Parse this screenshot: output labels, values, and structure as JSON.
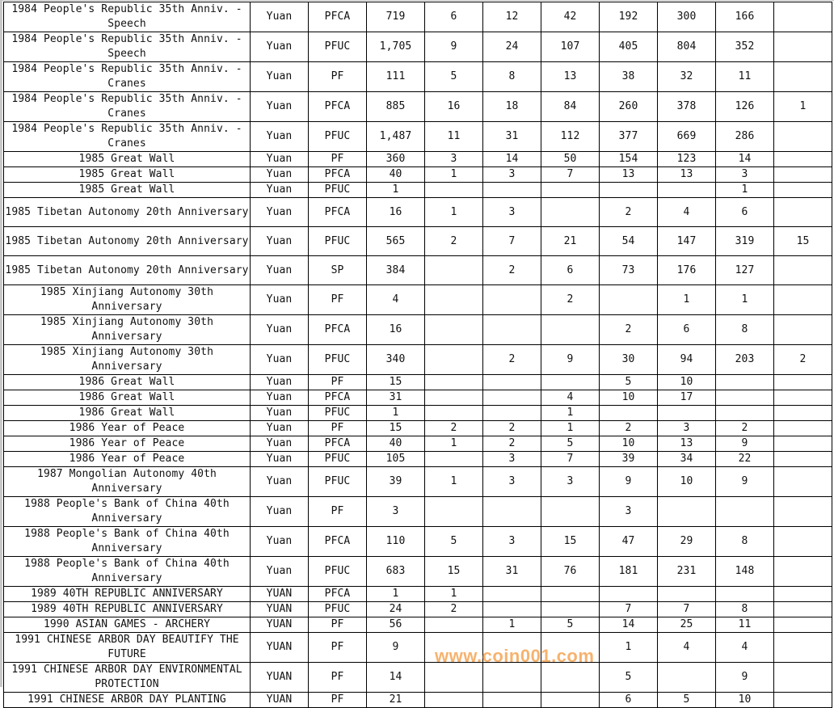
{
  "rows": [
    {
      "name": "1984 People's Republic 35th Anniv. - Speech",
      "unit": "Yuan",
      "grade": "PFCA",
      "values": [
        "719",
        "6",
        "12",
        "42",
        "192",
        "300",
        "166",
        ""
      ]
    },
    {
      "name": "1984 People's Republic 35th Anniv. - Speech",
      "unit": "Yuan",
      "grade": "PFUC",
      "values": [
        "1,705",
        "9",
        "24",
        "107",
        "405",
        "804",
        "352",
        ""
      ]
    },
    {
      "name": "1984 People's Republic 35th Anniv. - Cranes",
      "unit": "Yuan",
      "grade": "PF",
      "values": [
        "111",
        "5",
        "8",
        "13",
        "38",
        "32",
        "11",
        ""
      ]
    },
    {
      "name": "1984 People's Republic 35th Anniv. - Cranes",
      "unit": "Yuan",
      "grade": "PFCA",
      "values": [
        "885",
        "16",
        "18",
        "84",
        "260",
        "378",
        "126",
        "1"
      ]
    },
    {
      "name": "1984 People's Republic 35th Anniv. - Cranes",
      "unit": "Yuan",
      "grade": "PFUC",
      "values": [
        "1,487",
        "11",
        "31",
        "112",
        "377",
        "669",
        "286",
        ""
      ]
    },
    {
      "name": "1985 Great Wall",
      "unit": "Yuan",
      "grade": "PF",
      "values": [
        "360",
        "3",
        "14",
        "50",
        "154",
        "123",
        "14",
        ""
      ]
    },
    {
      "name": "1985 Great Wall",
      "unit": "Yuan",
      "grade": "PFCA",
      "values": [
        "40",
        "1",
        "3",
        "7",
        "13",
        "13",
        "3",
        ""
      ]
    },
    {
      "name": "1985 Great Wall",
      "unit": "Yuan",
      "grade": "PFUC",
      "values": [
        "1",
        "",
        "",
        "",
        "",
        "",
        "1",
        ""
      ]
    },
    {
      "name": "1985 Tibetan Autonomy 20th Anniversary",
      "unit": "Yuan",
      "grade": "PFCA",
      "values": [
        "16",
        "1",
        "3",
        "",
        "2",
        "4",
        "6",
        ""
      ]
    },
    {
      "name": "1985 Tibetan Autonomy 20th Anniversary",
      "unit": "Yuan",
      "grade": "PFUC",
      "values": [
        "565",
        "2",
        "7",
        "21",
        "54",
        "147",
        "319",
        "15"
      ]
    },
    {
      "name": "1985 Tibetan Autonomy 20th Anniversary",
      "unit": "Yuan",
      "grade": "SP",
      "values": [
        "384",
        "",
        "2",
        "6",
        "73",
        "176",
        "127",
        ""
      ]
    },
    {
      "name": "1985 Xinjiang Autonomy 30th Anniversary",
      "unit": "Yuan",
      "grade": "PF",
      "values": [
        "4",
        "",
        "",
        "2",
        "",
        "1",
        "1",
        ""
      ]
    },
    {
      "name": "1985 Xinjiang Autonomy 30th Anniversary",
      "unit": "Yuan",
      "grade": "PFCA",
      "values": [
        "16",
        "",
        "",
        "",
        "2",
        "6",
        "8",
        ""
      ]
    },
    {
      "name": "1985 Xinjiang Autonomy 30th Anniversary",
      "unit": "Yuan",
      "grade": "PFUC",
      "values": [
        "340",
        "",
        "2",
        "9",
        "30",
        "94",
        "203",
        "2"
      ]
    },
    {
      "name": "1986 Great Wall",
      "unit": "Yuan",
      "grade": "PF",
      "values": [
        "15",
        "",
        "",
        "",
        "5",
        "10",
        "",
        ""
      ]
    },
    {
      "name": "1986 Great Wall",
      "unit": "Yuan",
      "grade": "PFCA",
      "values": [
        "31",
        "",
        "",
        "4",
        "10",
        "17",
        "",
        ""
      ]
    },
    {
      "name": "1986 Great Wall",
      "unit": "Yuan",
      "grade": "PFUC",
      "values": [
        "1",
        "",
        "",
        "1",
        "",
        "",
        "",
        ""
      ]
    },
    {
      "name": "1986 Year of Peace",
      "unit": "Yuan",
      "grade": "PF",
      "values": [
        "15",
        "2",
        "2",
        "1",
        "2",
        "3",
        "2",
        ""
      ]
    },
    {
      "name": "1986 Year of Peace",
      "unit": "Yuan",
      "grade": "PFCA",
      "values": [
        "40",
        "1",
        "2",
        "5",
        "10",
        "13",
        "9",
        ""
      ]
    },
    {
      "name": "1986 Year of Peace",
      "unit": "Yuan",
      "grade": "PFUC",
      "values": [
        "105",
        "",
        "3",
        "7",
        "39",
        "34",
        "22",
        ""
      ]
    },
    {
      "name": "1987 Mongolian Autonomy 40th Anniversary",
      "unit": "Yuan",
      "grade": "PFUC",
      "values": [
        "39",
        "1",
        "3",
        "3",
        "9",
        "10",
        "9",
        ""
      ]
    },
    {
      "name": "1988 People's Bank of China 40th Anniversary",
      "unit": "Yuan",
      "grade": "PF",
      "values": [
        "3",
        "",
        "",
        "",
        "3",
        "",
        "",
        ""
      ]
    },
    {
      "name": "1988 People's Bank of China 40th Anniversary",
      "unit": "Yuan",
      "grade": "PFCA",
      "values": [
        "110",
        "5",
        "3",
        "15",
        "47",
        "29",
        "8",
        ""
      ]
    },
    {
      "name": "1988 People's Bank of China 40th Anniversary",
      "unit": "Yuan",
      "grade": "PFUC",
      "values": [
        "683",
        "15",
        "31",
        "76",
        "181",
        "231",
        "148",
        ""
      ]
    },
    {
      "name": "1989 40TH REPUBLIC ANNIVERSARY",
      "unit": "YUAN",
      "grade": "PFCA",
      "values": [
        "1",
        "1",
        "",
        "",
        "",
        "",
        "",
        ""
      ]
    },
    {
      "name": "1989 40TH REPUBLIC ANNIVERSARY",
      "unit": "YUAN",
      "grade": "PFUC",
      "values": [
        "24",
        "2",
        "",
        "",
        "7",
        "7",
        "8",
        ""
      ]
    },
    {
      "name": "1990 ASIAN GAMES - ARCHERY",
      "unit": "YUAN",
      "grade": "PF",
      "values": [
        "56",
        "",
        "1",
        "5",
        "14",
        "25",
        "11",
        ""
      ]
    },
    {
      "name": "1991 CHINESE ARBOR DAY BEAUTIFY THE FUTURE",
      "unit": "YUAN",
      "grade": "PF",
      "values": [
        "9",
        "",
        "",
        "",
        "1",
        "4",
        "4",
        ""
      ]
    },
    {
      "name": "1991 CHINESE ARBOR DAY ENVIRONMENTAL PROTECTION",
      "unit": "YUAN",
      "grade": "PF",
      "values": [
        "14",
        "",
        "",
        "",
        "5",
        "",
        "9",
        ""
      ]
    },
    {
      "name": "1991 CHINESE ARBOR DAY PLANTING",
      "unit": "YUAN",
      "grade": "PF",
      "values": [
        "21",
        "",
        "",
        "",
        "6",
        "5",
        "10",
        ""
      ]
    }
  ],
  "watermark": "www.coin001.com",
  "watermark_color": "#f5a04a"
}
